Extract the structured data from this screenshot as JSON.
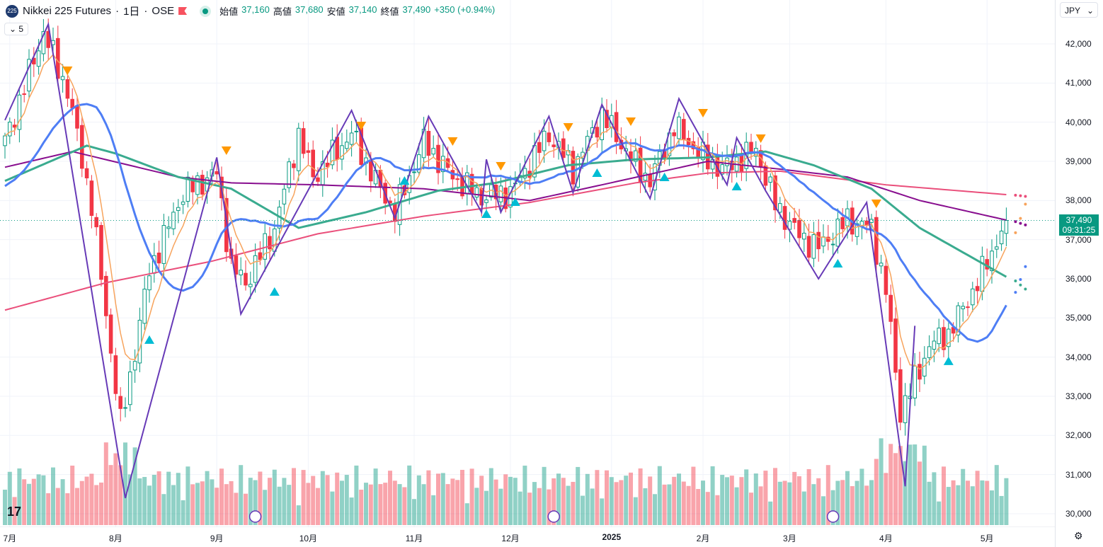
{
  "header": {
    "logo": "225",
    "symbol": "Nikkei 225 Futures",
    "sep1": "·",
    "interval": "1日",
    "sep2": "·",
    "exchange": "OSE",
    "open_label": "始値",
    "open": "37,160",
    "high_label": "高値",
    "high": "37,680",
    "low_label": "安値",
    "low": "37,140",
    "close_label": "終値",
    "close": "37,490",
    "change": "+350 (+0.94%)"
  },
  "collapse_label": "5",
  "currency": "JPY",
  "current_price": "37,490",
  "countdown": "09:31:25",
  "tv_logo": "TV",
  "colors": {
    "up": "#089981",
    "down": "#f23645",
    "ema_short": "#f7a35c",
    "ma_mid": "#4e7ef5",
    "ma_long": "#3aab8f",
    "ma_purple": "#880e8f",
    "ma_pink": "#ea4f7b",
    "zigzag": "#673ab7",
    "tri_down": "#ff9800",
    "tri_up": "#00bcd4"
  },
  "chart_data": {
    "type": "candlestick",
    "y_ticks": [
      "42,000",
      "41,000",
      "40,000",
      "39,000",
      "38,000",
      "37,000",
      "36,000",
      "35,000",
      "34,000",
      "33,000",
      "32,000",
      "31,000",
      "30,000"
    ],
    "y_tick_values": [
      42000,
      41000,
      40000,
      39000,
      38000,
      37000,
      36000,
      35000,
      34000,
      33000,
      32000,
      31000,
      30000
    ],
    "x_ticks": [
      {
        "label": "7月",
        "bar": 1
      },
      {
        "label": "8月",
        "bar": 23
      },
      {
        "label": "9月",
        "bar": 44
      },
      {
        "label": "10月",
        "bar": 63
      },
      {
        "label": "11月",
        "bar": 85
      },
      {
        "label": "12月",
        "bar": 105
      },
      {
        "label": "2025",
        "bar": 126
      },
      {
        "label": "2月",
        "bar": 145
      },
      {
        "label": "3月",
        "bar": 163
      },
      {
        "label": "4月",
        "bar": 183
      },
      {
        "label": "5月",
        "bar": 204
      }
    ],
    "bars": 209,
    "close_path": [
      [
        0,
        39500
      ],
      [
        8,
        42300
      ],
      [
        13,
        40800
      ],
      [
        18,
        37900
      ],
      [
        24,
        32300
      ],
      [
        26,
        33500
      ],
      [
        30,
        36200
      ],
      [
        37,
        38200
      ],
      [
        44,
        38700
      ],
      [
        47,
        36300
      ],
      [
        50,
        35900
      ],
      [
        56,
        37300
      ],
      [
        61,
        39700
      ],
      [
        64,
        38600
      ],
      [
        72,
        39700
      ],
      [
        77,
        38500
      ],
      [
        81,
        37700
      ],
      [
        87,
        39500
      ],
      [
        93,
        38600
      ],
      [
        99,
        38100
      ],
      [
        105,
        38200
      ],
      [
        113,
        39700
      ],
      [
        118,
        38800
      ],
      [
        124,
        40200
      ],
      [
        131,
        38900
      ],
      [
        134,
        38500
      ],
      [
        139,
        39900
      ],
      [
        145,
        39100
      ],
      [
        149,
        38800
      ],
      [
        156,
        39300
      ],
      [
        160,
        37900
      ],
      [
        165,
        37100
      ],
      [
        169,
        36800
      ],
      [
        175,
        37500
      ],
      [
        180,
        37300
      ],
      [
        183,
        35700
      ],
      [
        186,
        32600
      ],
      [
        189,
        33400
      ],
      [
        192,
        34300
      ],
      [
        196,
        34600
      ],
      [
        202,
        35900
      ],
      [
        208,
        37490
      ]
    ],
    "ma_green": [
      [
        0,
        38500
      ],
      [
        17,
        39400
      ],
      [
        23,
        39200
      ],
      [
        36,
        38600
      ],
      [
        47,
        38300
      ],
      [
        61,
        37300
      ],
      [
        75,
        37700
      ],
      [
        90,
        38250
      ],
      [
        102,
        38450
      ],
      [
        117,
        38900
      ],
      [
        131,
        39050
      ],
      [
        146,
        39100
      ],
      [
        158,
        39250
      ],
      [
        168,
        38900
      ],
      [
        180,
        38300
      ],
      [
        190,
        37300
      ],
      [
        208,
        36050
      ]
    ],
    "ma_purple": [
      [
        0,
        38850
      ],
      [
        14,
        39250
      ],
      [
        36,
        38600
      ],
      [
        47,
        38450
      ],
      [
        65,
        38400
      ],
      [
        87,
        38300
      ],
      [
        109,
        38000
      ],
      [
        124,
        38400
      ],
      [
        146,
        39000
      ],
      [
        161,
        38800
      ],
      [
        175,
        38600
      ],
      [
        190,
        38000
      ],
      [
        208,
        37500
      ]
    ],
    "ma_pink": [
      [
        0,
        35200
      ],
      [
        21,
        35900
      ],
      [
        43,
        36450
      ],
      [
        65,
        37150
      ],
      [
        87,
        37600
      ],
      [
        109,
        37950
      ],
      [
        131,
        38450
      ],
      [
        146,
        38700
      ],
      [
        161,
        38750
      ],
      [
        183,
        38400
      ],
      [
        208,
        38150
      ]
    ],
    "zigzag": [
      [
        0,
        40050
      ],
      [
        9,
        42500
      ],
      [
        25,
        30400
      ],
      [
        44,
        39100
      ],
      [
        49,
        35100
      ],
      [
        72,
        40300
      ],
      [
        81,
        37550
      ],
      [
        88,
        40150
      ],
      [
        99,
        37700
      ],
      [
        100,
        39050
      ],
      [
        103,
        37700
      ],
      [
        113,
        40150
      ],
      [
        118,
        38200
      ],
      [
        124,
        40450
      ],
      [
        134,
        38050
      ],
      [
        140,
        40600
      ],
      [
        150,
        38400
      ],
      [
        152,
        39600
      ],
      [
        158,
        38250
      ],
      [
        169,
        36000
      ],
      [
        179,
        37950
      ],
      [
        187,
        30700
      ],
      [
        189,
        34800
      ]
    ],
    "signals_down": [
      [
        13,
        41313
      ],
      [
        46,
        39271
      ],
      [
        74,
        39904
      ],
      [
        93,
        39506
      ],
      [
        103,
        38874
      ],
      [
        117,
        39868
      ],
      [
        130,
        40012
      ],
      [
        145,
        40229
      ],
      [
        157,
        39579
      ],
      [
        181,
        37916
      ]
    ],
    "signals_up": [
      [
        30,
        34447
      ],
      [
        56,
        35676
      ],
      [
        83,
        38512
      ],
      [
        100,
        37663
      ],
      [
        106,
        37970
      ],
      [
        123,
        38711
      ],
      [
        137,
        38603
      ],
      [
        152,
        38368
      ],
      [
        173,
        36398
      ],
      [
        196,
        33905
      ]
    ],
    "event_markers": [
      52,
      114,
      172
    ]
  }
}
